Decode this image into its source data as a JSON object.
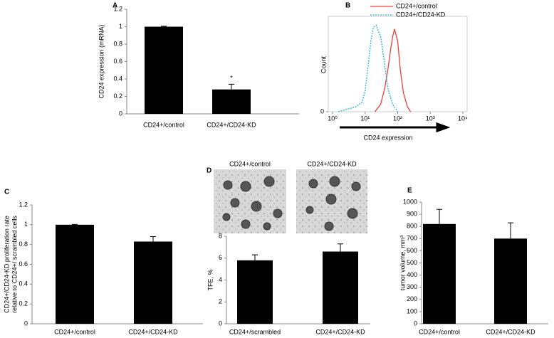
{
  "chart_data": [
    {
      "type": "bar",
      "panel": "A",
      "y_label": [
        "CD24 expression (mRNA)"
      ],
      "categories": [
        "CD24+/control",
        "CD24+/CD24-KD"
      ],
      "values": [
        1,
        0.28
      ],
      "errors": [
        0.005,
        0.06
      ],
      "color": "#000000",
      "ylim": [
        0,
        1.2
      ],
      "yticks": [
        0,
        0.2,
        0.4,
        0.6,
        0.8,
        1,
        1.2
      ],
      "annotation": "*"
    },
    {
      "type": "line",
      "panel": "B",
      "x_label": "CD24 expression",
      "y_label": "Count",
      "xscale": "log",
      "xlim": [
        1,
        10000
      ],
      "xticks": [
        {
          "value": 1,
          "label": "10⁰"
        },
        {
          "value": 10,
          "label": "10¹"
        },
        {
          "value": 100,
          "label": "10²"
        },
        {
          "value": 1000,
          "label": "10³"
        },
        {
          "value": 10000,
          "label": "10⁴"
        }
      ],
      "ylim": [
        0,
        100
      ],
      "yticks": [
        0
      ],
      "legend": "top-right",
      "series": [
        {
          "name": "CD24+/control",
          "color": "#e8403a",
          "style": "solid",
          "x": [
            20,
            30,
            40,
            50,
            60,
            70,
            80,
            100,
            120,
            150,
            200,
            250
          ],
          "values": [
            0,
            8,
            25,
            45,
            65,
            80,
            88,
            75,
            45,
            20,
            5,
            0
          ]
        },
        {
          "name": "CD24+/CD24-KD",
          "color": "#22b5d8",
          "style": "dotted",
          "x": [
            1.5,
            3,
            5,
            8,
            10,
            12,
            15,
            18,
            22,
            26,
            30,
            40,
            50,
            70,
            100
          ],
          "values": [
            0,
            3,
            5,
            10,
            22,
            45,
            75,
            90,
            92,
            85,
            80,
            50,
            25,
            8,
            0
          ]
        }
      ]
    },
    {
      "type": "bar",
      "panel": "C",
      "y_label": [
        "CD24+/CD24-KD proliferation rate",
        "relative to CD24+/ scrambled cells"
      ],
      "categories": [
        "CD24+/control",
        "CD24+/CD24-KD"
      ],
      "values": [
        1,
        0.83
      ],
      "errors": [
        0.003,
        0.05
      ],
      "color": "#000000",
      "ylim": [
        0,
        1.2
      ],
      "yticks": [
        0,
        0.2,
        0.4,
        0.6,
        0.8,
        1,
        1.2
      ]
    },
    {
      "type": "bar",
      "panel": "D",
      "y_label": [
        "TFE, %"
      ],
      "image_titles": [
        "CD24+/control",
        "CD24+/CD24-KD"
      ],
      "categories": [
        "CD24+/scrambled",
        "CD24+/CD24-KD"
      ],
      "values": [
        5.8,
        6.6
      ],
      "errors": [
        0.5,
        0.7
      ],
      "color": "#000000",
      "ylim": [
        0,
        8
      ],
      "yticks": [
        0,
        2,
        4,
        6,
        8
      ]
    },
    {
      "type": "bar",
      "panel": "E",
      "y_label": [
        "tumor volume, mm³"
      ],
      "categories": [
        "CD24+/control",
        "CD24+/CD24-KD"
      ],
      "values": [
        820,
        700
      ],
      "errors": [
        120,
        130
      ],
      "color": "#000000",
      "ylim": [
        0,
        1000
      ],
      "yticks": [
        0,
        100,
        200,
        300,
        400,
        500,
        600,
        700,
        800,
        900,
        1000
      ]
    }
  ]
}
